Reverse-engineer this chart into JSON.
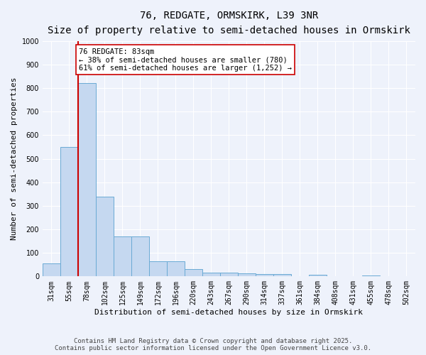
{
  "title_line1": "76, REDGATE, ORMSKIRK, L39 3NR",
  "title_line2": "Size of property relative to semi-detached houses in Ormskirk",
  "xlabel": "Distribution of semi-detached houses by size in Ormskirk",
  "ylabel": "Number of semi-detached properties",
  "categories": [
    "31sqm",
    "55sqm",
    "78sqm",
    "102sqm",
    "125sqm",
    "149sqm",
    "172sqm",
    "196sqm",
    "220sqm",
    "243sqm",
    "267sqm",
    "290sqm",
    "314sqm",
    "337sqm",
    "361sqm",
    "384sqm",
    "408sqm",
    "431sqm",
    "455sqm",
    "478sqm",
    "502sqm"
  ],
  "values": [
    55,
    550,
    820,
    340,
    170,
    170,
    65,
    65,
    30,
    17,
    15,
    12,
    10,
    10,
    0,
    8,
    0,
    0,
    5,
    0,
    0
  ],
  "bar_color": "#c5d8f0",
  "bar_edge_color": "#6aaad4",
  "marker_bin_index": 2,
  "marker_color": "#cc0000",
  "annotation_title": "76 REDGATE: 83sqm",
  "annotation_line1": "← 38% of semi-detached houses are smaller (780)",
  "annotation_line2": "61% of semi-detached houses are larger (1,252) →",
  "annotation_box_color": "#ffffff",
  "annotation_edge_color": "#cc0000",
  "ylim": [
    0,
    1000
  ],
  "yticks": [
    0,
    100,
    200,
    300,
    400,
    500,
    600,
    700,
    800,
    900,
    1000
  ],
  "background_color": "#eef2fb",
  "grid_color": "#ffffff",
  "footer_line1": "Contains HM Land Registry data © Crown copyright and database right 2025.",
  "footer_line2": "Contains public sector information licensed under the Open Government Licence v3.0.",
  "title_fontsize": 10,
  "subtitle_fontsize": 9,
  "axis_label_fontsize": 8,
  "tick_fontsize": 7,
  "annotation_fontsize": 7.5,
  "footer_fontsize": 6.5
}
